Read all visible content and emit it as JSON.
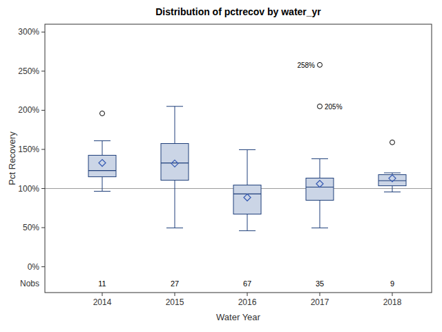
{
  "chart_data": {
    "type": "box",
    "title": "Distribution of pctrecov by water_yr",
    "x_label": "Water Year",
    "y_label": "Pct Recovery",
    "categories": [
      "2014",
      "2015",
      "2016",
      "2017",
      "2018"
    ],
    "whisker_low": [
      96.5,
      49.6,
      46,
      49.6,
      95.6
    ],
    "q1": [
      115,
      110.6,
      67.3,
      85,
      103.5
    ],
    "median": [
      123,
      132.7,
      93,
      101.8,
      110
    ],
    "q3": [
      142.5,
      157.5,
      104.4,
      113.3,
      117.7
    ],
    "whisker_high": [
      161,
      205,
      149.6,
      138,
      120
    ],
    "mean": [
      132.7,
      132,
      88.5,
      106,
      113
    ],
    "outliers": [
      [
        {
          "value": 196
        }
      ],
      [],
      [],
      [
        {
          "value": 258,
          "label": "258%"
        },
        {
          "value": 205,
          "label": "205%"
        }
      ],
      [
        {
          "value": 159
        }
      ]
    ],
    "counts_label": "Nobs",
    "counts": [
      11,
      27,
      67,
      35,
      9
    ],
    "reference_line": 100,
    "color": "#cbd5e6",
    "ylim": [
      -33,
      310
    ],
    "yticks": [
      {
        "value": 0,
        "label": "0%"
      },
      {
        "value": 50,
        "label": "50%"
      },
      {
        "value": 100,
        "label": "100%"
      },
      {
        "value": 150,
        "label": "150%"
      },
      {
        "value": 200,
        "label": "200%"
      },
      {
        "value": 250,
        "label": "250%"
      },
      {
        "value": 300,
        "label": "300%"
      }
    ],
    "grid": false
  }
}
